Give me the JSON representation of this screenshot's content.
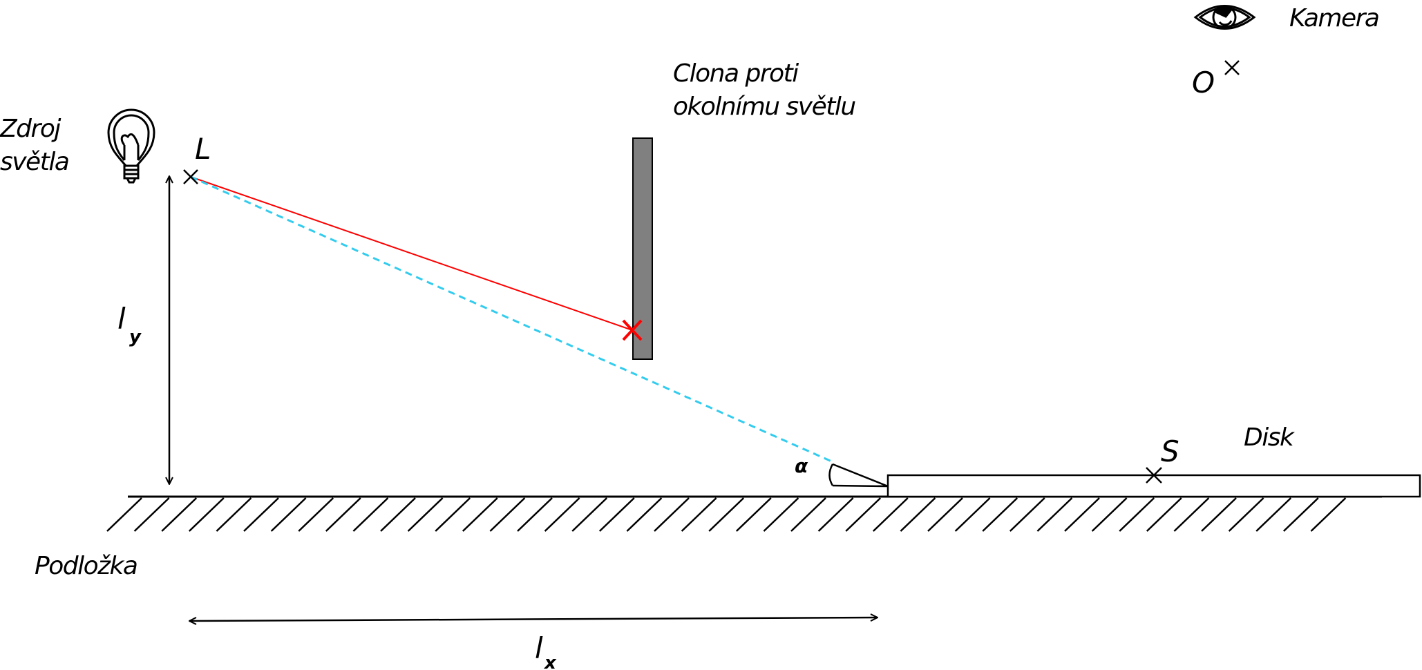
{
  "labels": {
    "source_line1": "Zdroj",
    "source_line2": "světla",
    "point_L": "L",
    "shield_line1": "Clona proti",
    "shield_line2": "okolnímu světlu",
    "camera": "Kamera",
    "point_O": "O",
    "ly_main": "l",
    "ly_sub": "y",
    "lx_main": "l",
    "lx_sub": "x",
    "alpha": "α",
    "point_S": "S",
    "disk": "Disk",
    "substrate": "Podložka"
  },
  "icons": {
    "light_source": "light-bulb-icon",
    "camera": "eye-icon"
  },
  "colors": {
    "blocked_ray": "#ff0000",
    "reflected_ray": "#33ccee",
    "shield": "#808080",
    "ink": "#000000"
  }
}
